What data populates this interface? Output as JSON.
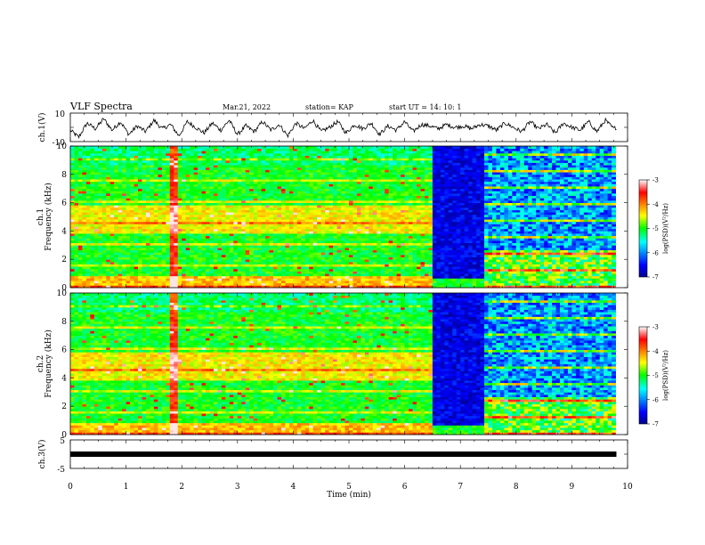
{
  "header": {
    "title": "VLF Spectra",
    "date": "Mar.21, 2022",
    "station": "station= KAP",
    "start": "start UT =  14: 10: 1"
  },
  "chart_data": [
    {
      "id": "ch1-waveform",
      "type": "line",
      "ylabel": "ch.1(V)",
      "ylim": [
        -10,
        10
      ],
      "yticks": [
        "10",
        "-10"
      ],
      "x": [
        0,
        0.15,
        0.3,
        0.45,
        0.6,
        0.75,
        0.9,
        1.05,
        1.2,
        1.35,
        1.5,
        1.65,
        1.8,
        1.95,
        2.1,
        2.25,
        2.4,
        2.55,
        2.7,
        2.85,
        3.0,
        3.15,
        3.3,
        3.45,
        3.6,
        3.75,
        3.9,
        4.05,
        4.2,
        4.35,
        4.5,
        4.65,
        4.8,
        4.95,
        5.1,
        5.25,
        5.4,
        5.55,
        5.7,
        5.85,
        6.0,
        6.15,
        6.3,
        6.45,
        6.6,
        6.75,
        6.9,
        7.05,
        7.2,
        7.35,
        7.5,
        7.65,
        7.8,
        7.95,
        8.1,
        8.25,
        8.4,
        8.55,
        8.7,
        8.85,
        9.0,
        9.15,
        9.3,
        9.45,
        9.6,
        9.75,
        9.8
      ],
      "y": [
        -2,
        -7,
        3,
        -1,
        6,
        -2,
        4,
        -5,
        1,
        -3,
        5,
        -1,
        2,
        -6,
        4,
        0,
        -4,
        3,
        -2,
        5,
        -5,
        1,
        -3,
        4,
        -2,
        2,
        -6,
        3,
        -1,
        5,
        -3,
        0,
        4,
        -4,
        2,
        -1,
        3,
        -5,
        1,
        -2,
        4,
        -3,
        2,
        1,
        -1,
        2,
        0,
        1,
        -1,
        2,
        1,
        -2,
        3,
        0,
        -3,
        4,
        -1,
        2,
        -4,
        3,
        0,
        -2,
        4,
        -3,
        5,
        -1,
        0
      ]
    },
    {
      "id": "ch1-spectrogram",
      "type": "heatmap",
      "ylabel": "ch.1\nFrequency (kHz)",
      "ylim": [
        0,
        10
      ],
      "yticks": [
        "0",
        "2",
        "4",
        "6",
        "8",
        "10"
      ],
      "colorbar": {
        "label": "log(PSD)(V²/Hz)",
        "range": [
          -7,
          -3
        ],
        "ticks": [
          "-3",
          "-4",
          "-5",
          "-6",
          "-7"
        ]
      }
    },
    {
      "id": "ch2-spectrogram",
      "type": "heatmap",
      "ylabel": "ch.2\nFrequency (kHz)",
      "ylim": [
        0,
        10
      ],
      "yticks": [
        "0",
        "2",
        "4",
        "6",
        "8",
        "10"
      ],
      "colorbar": {
        "label": "log(PSD)(V²/Hz)",
        "range": [
          -7,
          -3
        ],
        "ticks": [
          "-3",
          "-4",
          "-5",
          "-6",
          "-7"
        ]
      }
    },
    {
      "id": "ch3-waveform",
      "type": "line",
      "ylabel": "ch.3(V)",
      "ylim": [
        -5,
        5
      ],
      "yticks": [
        "5",
        "-5"
      ],
      "x": [
        0,
        9.8
      ],
      "y": [
        0,
        0
      ]
    }
  ],
  "xaxis": {
    "label": "Time (min)",
    "range": [
      0,
      10
    ],
    "ticks": [
      "0",
      "1",
      "2",
      "3",
      "4",
      "5",
      "6",
      "7",
      "8",
      "9",
      "10"
    ]
  },
  "colors": {
    "jet_low": "#00008f",
    "jet_mid": "#00ff7f",
    "jet_high": "#ff0000"
  }
}
